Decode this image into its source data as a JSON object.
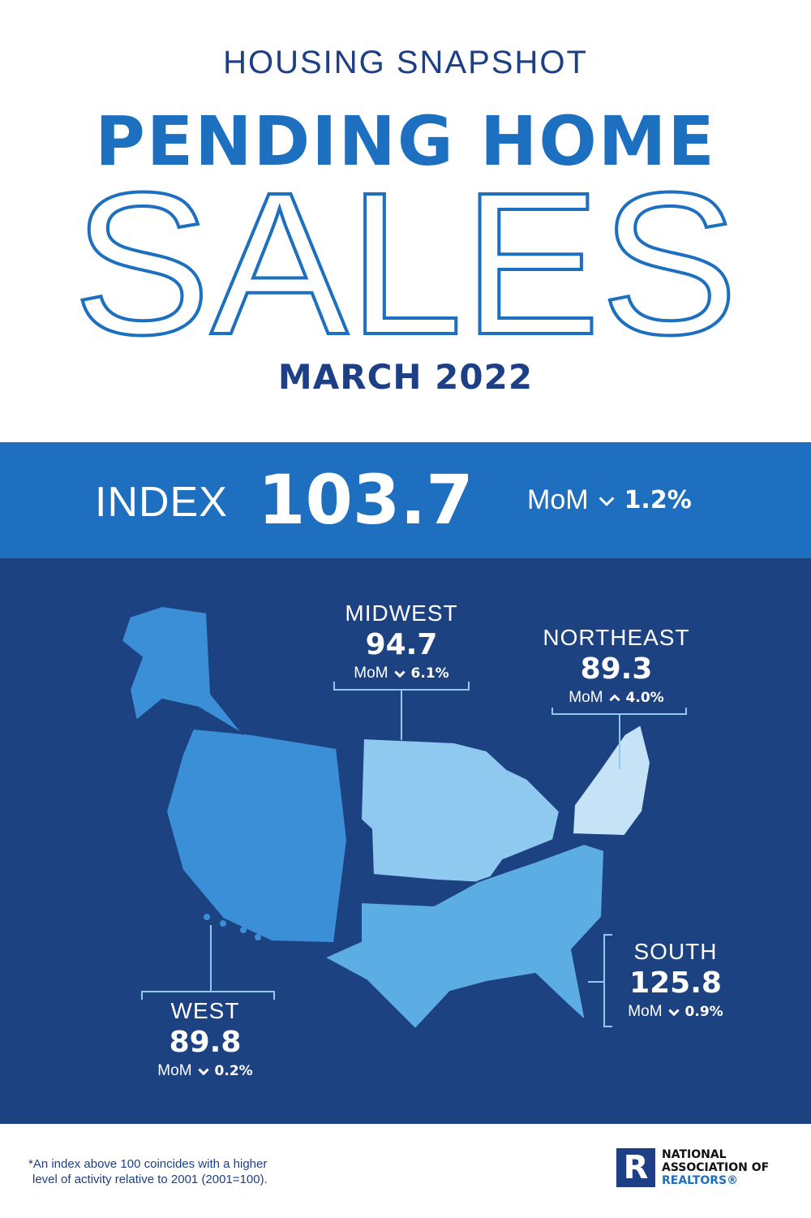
{
  "header": {
    "kicker": "HOUSING SNAPSHOT",
    "title": "PENDING HOME",
    "title_large": "SALES",
    "date": "MARCH 2022"
  },
  "index": {
    "label": "INDEX",
    "value": "103.7",
    "mom_label": "MoM",
    "mom_direction": "down",
    "mom_value": "1.2%"
  },
  "regions": [
    {
      "name": "MIDWEST",
      "value": "94.7",
      "mom_label": "MoM",
      "mom_direction": "down",
      "mom_value": "6.1%",
      "color": "#8fc9ef"
    },
    {
      "name": "NORTHEAST",
      "value": "89.3",
      "mom_label": "MoM",
      "mom_direction": "up",
      "mom_value": "4.0%",
      "color": "#c6e2f7"
    },
    {
      "name": "SOUTH",
      "value": "125.8",
      "mom_label": "MoM",
      "mom_direction": "down",
      "mom_value": "0.9%",
      "color": "#5cadE4"
    },
    {
      "name": "WEST",
      "value": "89.8",
      "mom_label": "MoM",
      "mom_direction": "down",
      "mom_value": "0.2%",
      "color": "#3a8fd7"
    }
  ],
  "footnote": [
    "*An index above 100 coincides with a higher",
    "level of activity relative to 2001 (2001=100)."
  ],
  "logo": {
    "mark": "R",
    "lines": [
      "NATIONAL",
      "ASSOCIATION OF",
      "REALTORS®"
    ]
  }
}
